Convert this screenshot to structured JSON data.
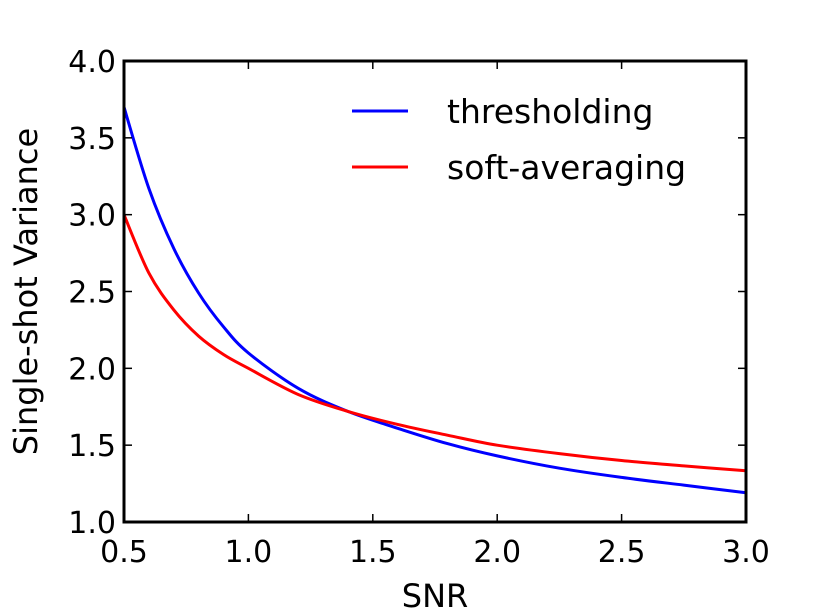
{
  "chart_data": {
    "type": "line",
    "title": "",
    "xlabel": "SNR",
    "ylabel": "Single-shot Variance",
    "xlim": [
      0.5,
      3.0
    ],
    "ylim": [
      1.0,
      4.0
    ],
    "xticks": [
      0.5,
      1.0,
      1.5,
      2.0,
      2.5,
      3.0
    ],
    "xtick_labels": [
      "0.5",
      "1.0",
      "1.5",
      "2.0",
      "2.5",
      "3.0"
    ],
    "yticks": [
      1.0,
      1.5,
      2.0,
      2.5,
      3.0,
      3.5,
      4.0
    ],
    "ytick_labels": [
      "1.0",
      "1.5",
      "2.0",
      "2.5",
      "3.0",
      "3.5",
      "4.0"
    ],
    "grid": false,
    "legend_position": "top-right",
    "x": [
      0.5,
      0.6,
      0.7,
      0.8,
      0.9,
      1.0,
      1.2,
      1.4,
      1.6,
      1.8,
      2.0,
      2.25,
      2.5,
      2.75,
      3.0
    ],
    "series": [
      {
        "name": "thresholding",
        "color": "#0000ff",
        "values": [
          3.7,
          3.17,
          2.78,
          2.49,
          2.27,
          2.1,
          1.87,
          1.72,
          1.61,
          1.51,
          1.43,
          1.35,
          1.29,
          1.24,
          1.19
        ]
      },
      {
        "name": "soft-averaging",
        "color": "#ff0000",
        "values": [
          3.0,
          2.62,
          2.38,
          2.21,
          2.09,
          2.0,
          1.83,
          1.72,
          1.635,
          1.565,
          1.5,
          1.445,
          1.4,
          1.365,
          1.333
        ]
      }
    ]
  }
}
